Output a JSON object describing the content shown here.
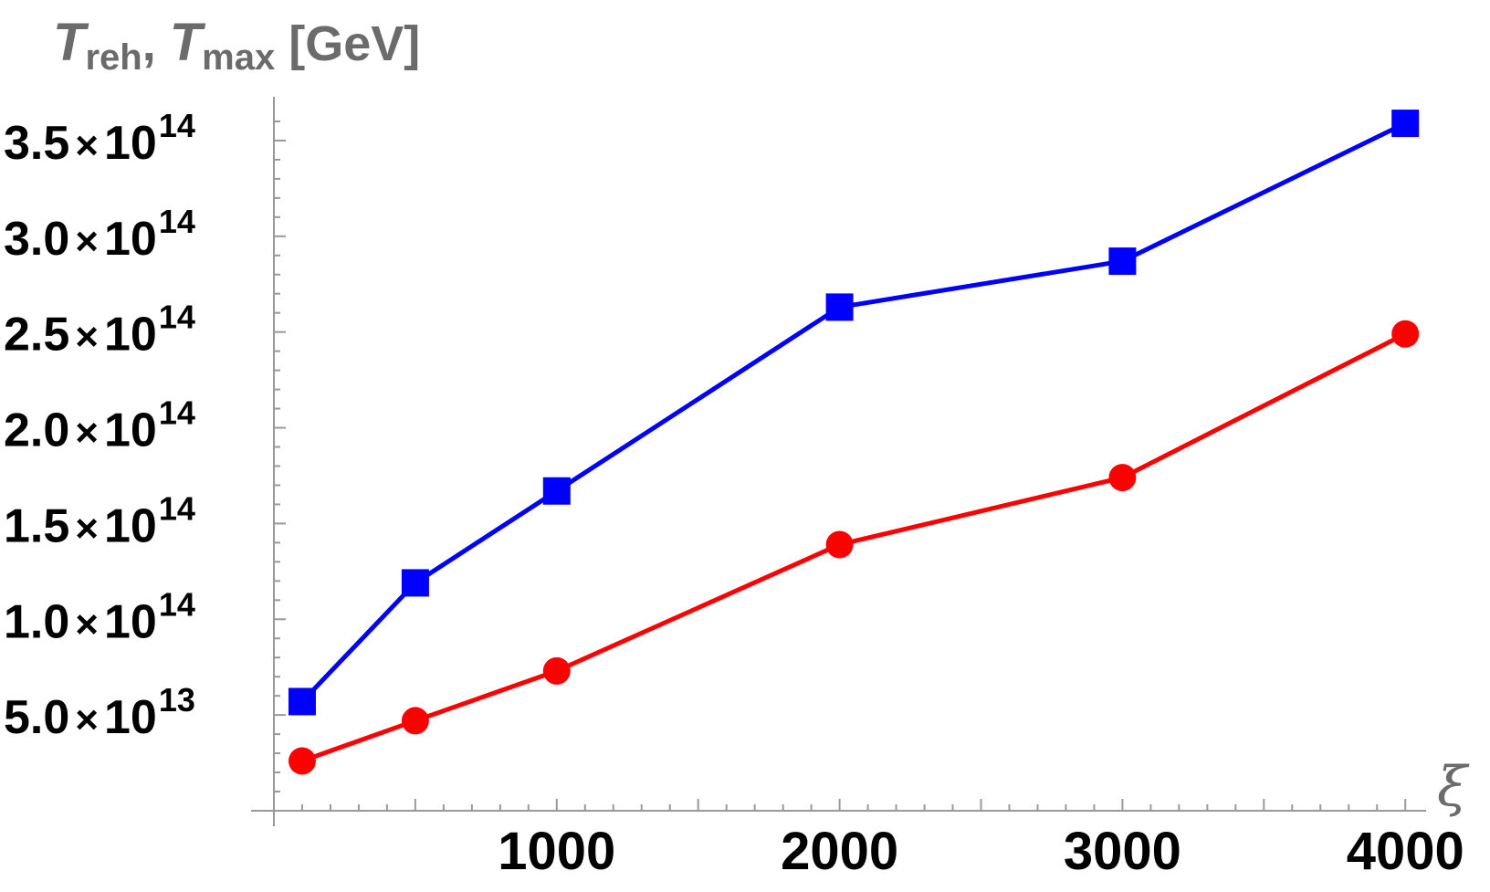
{
  "chart_data": {
    "type": "line",
    "title": "",
    "ylabel": {
      "parts": [
        {
          "text": "T",
          "style": "italic"
        },
        {
          "text": "reh",
          "style": "sub"
        },
        {
          "text": ", ",
          "style": "normal"
        },
        {
          "text": "T",
          "style": "italic"
        },
        {
          "text": "max",
          "style": "sub"
        },
        {
          "text": " [GeV]",
          "style": "normal"
        }
      ]
    },
    "xlabel": "ξ",
    "xlim": [
      0,
      4080
    ],
    "ylim": [
      0,
      370000000000000.0
    ],
    "xticks": [
      1000,
      2000,
      3000,
      4000
    ],
    "xtick_labels": [
      "1000",
      "2000",
      "3000",
      "4000"
    ],
    "yticks": [
      50000000000000.0,
      100000000000000.0,
      150000000000000.0,
      200000000000000.0,
      250000000000000.0,
      300000000000000.0,
      350000000000000.0
    ],
    "ytick_labels": [
      {
        "mantissa": "5.0",
        "times": "×",
        "base": "10",
        "exp": "13"
      },
      {
        "mantissa": "1.0",
        "times": "×",
        "base": "10",
        "exp": "14"
      },
      {
        "mantissa": "1.5",
        "times": "×",
        "base": "10",
        "exp": "14"
      },
      {
        "mantissa": "2.0",
        "times": "×",
        "base": "10",
        "exp": "14"
      },
      {
        "mantissa": "2.5",
        "times": "×",
        "base": "10",
        "exp": "14"
      },
      {
        "mantissa": "3.0",
        "times": "×",
        "base": "10",
        "exp": "14"
      },
      {
        "mantissa": "3.5",
        "times": "×",
        "base": "10",
        "exp": "14"
      }
    ],
    "grid": false,
    "series": [
      {
        "color": "#0000ff",
        "marker": "square",
        "x": [
          100,
          500,
          1000,
          2000,
          3000,
          4000
        ],
        "y": [
          57000000000000.0,
          119000000000000.0,
          167000000000000.0,
          263000000000000.0,
          287000000000000.0,
          359000000000000.0
        ]
      },
      {
        "color": "#ff0000",
        "marker": "circle",
        "x": [
          100,
          500,
          1000,
          2000,
          3000,
          4000
        ],
        "y": [
          26000000000000.0,
          47000000000000.0,
          73000000000000.0,
          139000000000000.0,
          174000000000000.0,
          249000000000000.0
        ]
      }
    ]
  }
}
